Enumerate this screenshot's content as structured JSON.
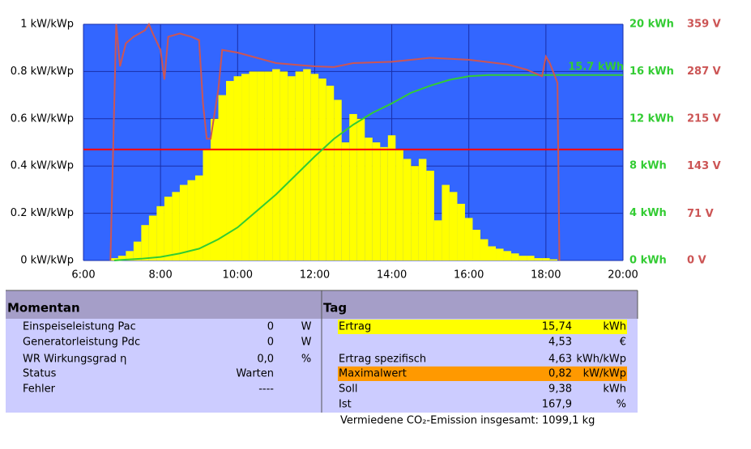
{
  "chart_data": {
    "type": "combo",
    "xlim": [
      6,
      20
    ],
    "xticks": [
      {
        "value": 6,
        "label": "6:00"
      },
      {
        "value": 8,
        "label": "8:00"
      },
      {
        "value": 10,
        "label": "10:00"
      },
      {
        "value": 12,
        "label": "12:00"
      },
      {
        "value": 14,
        "label": "14:00"
      },
      {
        "value": 16,
        "label": "16:00"
      },
      {
        "value": 18,
        "label": "18:00"
      },
      {
        "value": 20,
        "label": "20:00"
      }
    ],
    "ylim": [
      0,
      1
    ],
    "yticks": [
      {
        "value": 0,
        "label": "0 kW/kWp"
      },
      {
        "value": 0.2,
        "label": "0.2 kW/kWp"
      },
      {
        "value": 0.4,
        "label": "0.4 kW/kWp"
      },
      {
        "value": 0.6,
        "label": "0.6 kW/kWp"
      },
      {
        "value": 0.8,
        "label": "0.8 kW/kWp"
      },
      {
        "value": 1,
        "label": "1 kW/kWp"
      }
    ],
    "y2lim": [
      0,
      20
    ],
    "y2color": "#33cc33",
    "y2ticks": [
      {
        "value": 0,
        "label": "0 kWh"
      },
      {
        "value": 4,
        "label": "4 kWh"
      },
      {
        "value": 8,
        "label": "8 kWh"
      },
      {
        "value": 12,
        "label": "12 kWh"
      },
      {
        "value": 16,
        "label": "16 kWh"
      },
      {
        "value": 20,
        "label": "20 kWh"
      }
    ],
    "y3lim": [
      0,
      359
    ],
    "y3color": "#cc5555",
    "y3ticks": [
      {
        "value": 0,
        "label": "0 V"
      },
      {
        "value": 71,
        "label": "71 V"
      },
      {
        "value": 143,
        "label": "143 V"
      },
      {
        "value": 215,
        "label": "215 V"
      },
      {
        "value": 287,
        "label": "287 V"
      },
      {
        "value": 359,
        "label": "359 V"
      }
    ],
    "background": "#3366ff",
    "grid": true,
    "grid_color": "#1a2fa8",
    "reference_line": {
      "value": 0.47,
      "color": "#ff0000"
    },
    "annotation": {
      "text": "15.7 kWh",
      "x": 19.3,
      "y": 15.7,
      "axis": "y2"
    },
    "series": [
      {
        "type": "bar",
        "color": "#ffff00",
        "axis": "y",
        "width": 0.2,
        "x": [
          6.8,
          7.0,
          7.2,
          7.4,
          7.6,
          7.8,
          8.0,
          8.2,
          8.4,
          8.6,
          8.8,
          9.0,
          9.2,
          9.4,
          9.6,
          9.8,
          10.0,
          10.2,
          10.4,
          10.6,
          10.8,
          11.0,
          11.2,
          11.4,
          11.6,
          11.8,
          12.0,
          12.2,
          12.4,
          12.6,
          12.8,
          13.0,
          13.2,
          13.4,
          13.6,
          13.8,
          14.0,
          14.2,
          14.4,
          14.6,
          14.8,
          15.0,
          15.2,
          15.4,
          15.6,
          15.8,
          16.0,
          16.2,
          16.4,
          16.6,
          16.8,
          17.0,
          17.2,
          17.4,
          17.6,
          17.8,
          18.0,
          18.2
        ],
        "values": [
          0.01,
          0.02,
          0.04,
          0.08,
          0.15,
          0.19,
          0.23,
          0.27,
          0.29,
          0.32,
          0.34,
          0.36,
          0.47,
          0.6,
          0.7,
          0.76,
          0.78,
          0.79,
          0.8,
          0.8,
          0.8,
          0.81,
          0.8,
          0.78,
          0.8,
          0.81,
          0.79,
          0.77,
          0.74,
          0.68,
          0.5,
          0.62,
          0.6,
          0.52,
          0.5,
          0.48,
          0.53,
          0.47,
          0.43,
          0.4,
          0.43,
          0.38,
          0.17,
          0.32,
          0.29,
          0.24,
          0.18,
          0.13,
          0.09,
          0.06,
          0.05,
          0.04,
          0.03,
          0.02,
          0.02,
          0.01,
          0.01,
          0.005
        ]
      },
      {
        "type": "line",
        "color": "#33cc33",
        "axis": "y2",
        "x": [
          6.8,
          7.0,
          7.5,
          8.0,
          8.5,
          9.0,
          9.5,
          10.0,
          10.5,
          11.0,
          11.5,
          12.0,
          12.5,
          13.0,
          13.5,
          14.0,
          14.5,
          15.0,
          15.5,
          16.0,
          16.5,
          17.0,
          18.0,
          20.0
        ],
        "values": [
          0,
          0.05,
          0.15,
          0.3,
          0.6,
          1.0,
          1.8,
          2.8,
          4.2,
          5.6,
          7.2,
          8.8,
          10.3,
          11.5,
          12.5,
          13.3,
          14.2,
          14.8,
          15.3,
          15.6,
          15.7,
          15.7,
          15.7,
          15.7
        ]
      },
      {
        "type": "line",
        "color": "#cc5555",
        "axis": "y3",
        "x": [
          6.7,
          6.85,
          6.95,
          7.1,
          7.3,
          7.6,
          7.7,
          7.8,
          8.0,
          8.1,
          8.2,
          8.5,
          8.8,
          9.0,
          9.1,
          9.2,
          9.3,
          9.5,
          9.6,
          10,
          11,
          12,
          12.5,
          13,
          14,
          15,
          16,
          17,
          17.5,
          17.9,
          18.0,
          18.1,
          18.3,
          18.35
        ],
        "values": [
          0,
          359,
          295,
          330,
          340,
          350,
          359,
          345,
          320,
          275,
          340,
          345,
          340,
          335,
          240,
          185,
          185,
          260,
          320,
          316,
          300,
          295,
          294,
          300,
          302,
          308,
          305,
          298,
          290,
          280,
          310,
          300,
          270,
          0
        ]
      }
    ]
  },
  "momentan": {
    "title": "Momentan",
    "rows": [
      {
        "label": "Einspeiseleistung Pac",
        "value": "0",
        "unit": "W"
      },
      {
        "label": "Generatorleistung Pdc",
        "value": "0",
        "unit": "W"
      },
      {
        "label": "WR Wirkungsgrad η",
        "value": "0,0",
        "unit": "%"
      },
      {
        "label": "Status",
        "value": "Warten"
      },
      {
        "label": "Fehler",
        "value": "----"
      }
    ]
  },
  "tag": {
    "title": "Tag",
    "rows": [
      {
        "label": "Ertrag",
        "value": "15,74",
        "unit": "kWh",
        "highlight": "#ffff00"
      },
      {
        "value": "4,53",
        "unit": "€"
      },
      {
        "label": "Ertrag spezifisch",
        "value": "4,63",
        "unit": "kWh/kWp"
      },
      {
        "label": "Maximalwert",
        "value": "0,82",
        "unit": "kW/kWp",
        "highlight": "#ff9900"
      },
      {
        "label": "Soll",
        "value": "9,38",
        "unit": "kWh"
      },
      {
        "label": "Ist",
        "value": "167,9",
        "unit": "%"
      }
    ]
  },
  "footer": "Vermiedene CO₂-Emission insgesamt: 1099,1 kg"
}
